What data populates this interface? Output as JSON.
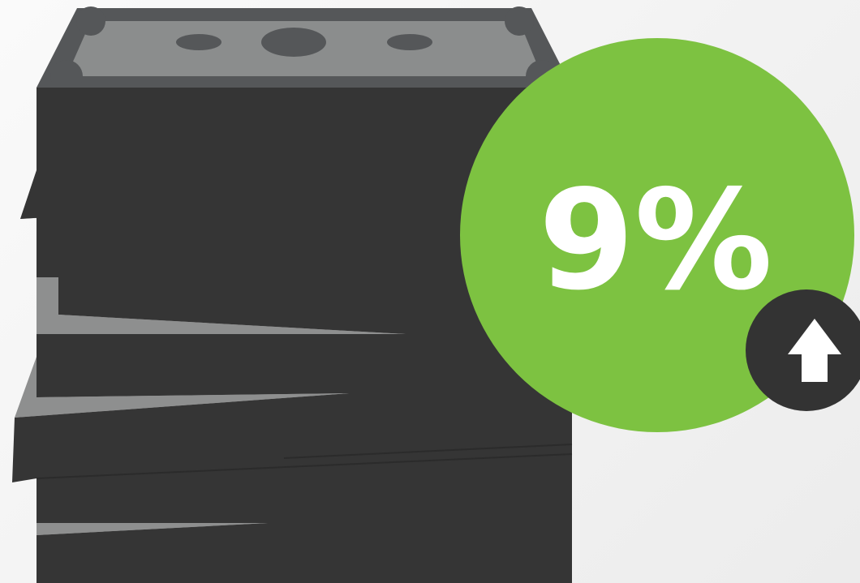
{
  "badge": {
    "percent_label": "9%",
    "trend_icon": "arrow-up-icon",
    "badge_color": "#7dc241",
    "trend_circle_color": "#333333"
  },
  "money_stack": {
    "icon": "money-stack-icon",
    "bill_color": "#353535",
    "edge_color": "#8e8f8f",
    "face_color": "#555759"
  }
}
